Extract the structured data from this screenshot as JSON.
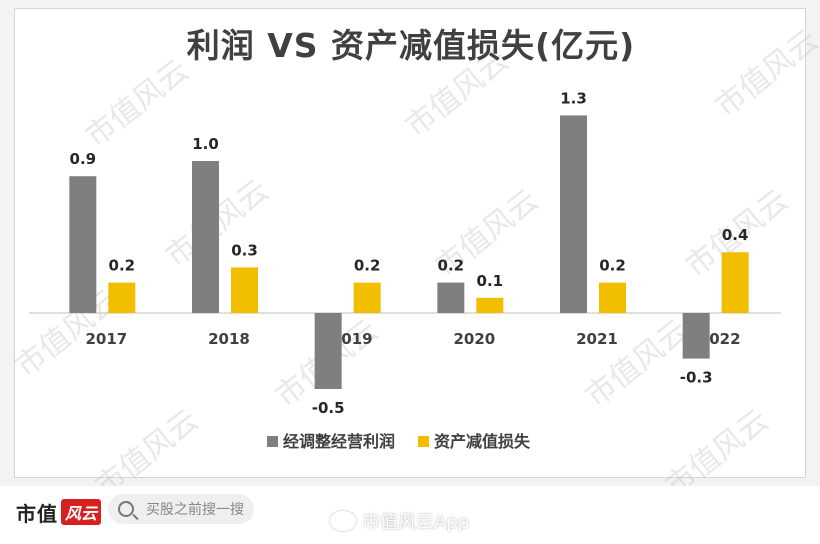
{
  "chart_data": {
    "type": "bar",
    "title": "利润 VS 资产减值损失(亿元)",
    "categories": [
      "2017",
      "2018",
      "2019",
      "2020",
      "2021",
      "2022"
    ],
    "series": [
      {
        "name": "经调整经营利润",
        "values": [
          0.9,
          1.0,
          -0.5,
          0.2,
          1.3,
          -0.3
        ],
        "color": "#7f7f7f"
      },
      {
        "name": "资产减值损失",
        "values": [
          0.2,
          0.3,
          0.2,
          0.1,
          0.2,
          0.4
        ],
        "color": "#f2bf00"
      }
    ],
    "value_labels": [
      [
        "0.9",
        "1.0",
        "-0.5",
        "0.2",
        "1.3",
        "-0.3"
      ],
      [
        "0.2",
        "0.3",
        "0.2",
        "0.1",
        "0.2",
        "0.4"
      ]
    ],
    "ylim": [
      -0.5,
      1.3
    ],
    "grid": false,
    "legend_position": "bottom"
  },
  "watermark_text": "市值风云",
  "footer": {
    "brand_text": "市值",
    "brand_mark": "风云",
    "search_placeholder": "买股之前搜一搜",
    "app_credit": "市值风云App"
  }
}
